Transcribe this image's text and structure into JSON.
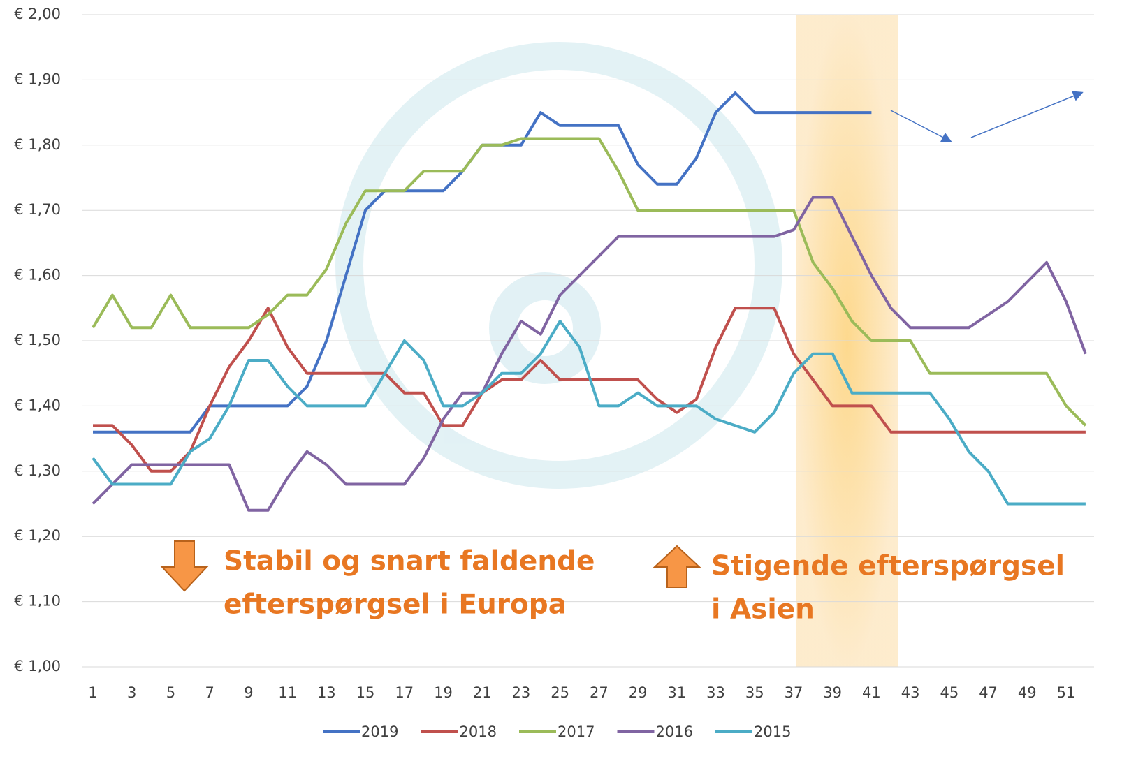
{
  "chart_data": {
    "type": "line",
    "categories": [
      1,
      null,
      3,
      null,
      5,
      null,
      7,
      null,
      9,
      null,
      11,
      null,
      13,
      null,
      15,
      null,
      17,
      null,
      19,
      null,
      21,
      null,
      23,
      null,
      25,
      null,
      27,
      null,
      29,
      null,
      31,
      null,
      33,
      null,
      35,
      null,
      37,
      null,
      39,
      null,
      41,
      null,
      43,
      null,
      45,
      null,
      47,
      null,
      49,
      null,
      51,
      null
    ],
    "ylim": [
      1.0,
      2.0
    ],
    "yticks": [
      {
        "value": 1.0,
        "label": "€ 1,00"
      },
      {
        "value": 1.1,
        "label": "€ 1,10"
      },
      {
        "value": 1.2,
        "label": "€ 1,20"
      },
      {
        "value": 1.3,
        "label": "€ 1,30"
      },
      {
        "value": 1.4,
        "label": "€ 1,40"
      },
      {
        "value": 1.5,
        "label": "€ 1,50"
      },
      {
        "value": 1.6,
        "label": "€ 1,60"
      },
      {
        "value": 1.7,
        "label": "€ 1,70"
      },
      {
        "value": 1.8,
        "label": "€ 1,80"
      },
      {
        "value": 1.9,
        "label": "€ 1,90"
      },
      {
        "value": 2.0,
        "label": "€ 2,00"
      }
    ],
    "grid": true,
    "legend": "bottom",
    "series": [
      {
        "name": "2019",
        "color": "#4472c4",
        "values": [
          1.36,
          1.36,
          1.36,
          1.36,
          1.36,
          1.36,
          1.4,
          1.4,
          1.4,
          1.4,
          1.4,
          1.43,
          1.5,
          1.6,
          1.7,
          1.73,
          1.73,
          1.73,
          1.73,
          1.76,
          1.8,
          1.8,
          1.8,
          1.85,
          1.83,
          1.83,
          1.83,
          1.83,
          1.77,
          1.74,
          1.74,
          1.78,
          1.85,
          1.88,
          1.85,
          1.85,
          1.85,
          1.85,
          1.85,
          1.85,
          1.85,
          null,
          null,
          null,
          null,
          null,
          null,
          null,
          null,
          null,
          null,
          null
        ]
      },
      {
        "name": "2018",
        "color": "#c0504d",
        "values": [
          1.37,
          1.37,
          1.34,
          1.3,
          1.3,
          1.33,
          1.4,
          1.46,
          1.5,
          1.55,
          1.49,
          1.45,
          1.45,
          1.45,
          1.45,
          1.45,
          1.42,
          1.42,
          1.37,
          1.37,
          1.42,
          1.44,
          1.44,
          1.47,
          1.44,
          1.44,
          1.44,
          1.44,
          1.44,
          1.41,
          1.39,
          1.41,
          1.49,
          1.55,
          1.55,
          1.55,
          1.48,
          1.44,
          1.4,
          1.4,
          1.4,
          1.36,
          1.36,
          1.36,
          1.36,
          1.36,
          1.36,
          1.36,
          1.36,
          1.36,
          1.36,
          1.36
        ]
      },
      {
        "name": "2017",
        "color": "#9bbb59",
        "values": [
          1.52,
          1.57,
          1.52,
          1.52,
          1.57,
          1.52,
          1.52,
          1.52,
          1.52,
          1.54,
          1.57,
          1.57,
          1.61,
          1.68,
          1.73,
          1.73,
          1.73,
          1.76,
          1.76,
          1.76,
          1.8,
          1.8,
          1.81,
          1.81,
          1.81,
          1.81,
          1.81,
          1.76,
          1.7,
          1.7,
          1.7,
          1.7,
          1.7,
          1.7,
          1.7,
          1.7,
          1.7,
          1.62,
          1.58,
          1.53,
          1.5,
          1.5,
          1.5,
          1.45,
          1.45,
          1.45,
          1.45,
          1.45,
          1.45,
          1.45,
          1.4,
          1.37
        ]
      },
      {
        "name": "2016",
        "color": "#8064a2",
        "values": [
          1.25,
          1.28,
          1.31,
          1.31,
          1.31,
          1.31,
          1.31,
          1.31,
          1.24,
          1.24,
          1.29,
          1.33,
          1.31,
          1.28,
          1.28,
          1.28,
          1.28,
          1.32,
          1.38,
          1.42,
          1.42,
          1.48,
          1.53,
          1.51,
          1.57,
          1.6,
          1.63,
          1.66,
          1.66,
          1.66,
          1.66,
          1.66,
          1.66,
          1.66,
          1.66,
          1.66,
          1.67,
          1.72,
          1.72,
          1.66,
          1.6,
          1.55,
          1.52,
          1.52,
          1.52,
          1.52,
          1.54,
          1.56,
          1.59,
          1.62,
          1.56,
          1.48
        ]
      },
      {
        "name": "2015",
        "color": "#4bacc6",
        "values": [
          1.32,
          1.28,
          1.28,
          1.28,
          1.28,
          1.33,
          1.35,
          1.4,
          1.47,
          1.47,
          1.43,
          1.4,
          1.4,
          1.4,
          1.4,
          1.45,
          1.5,
          1.47,
          1.4,
          1.4,
          1.42,
          1.45,
          1.45,
          1.48,
          1.53,
          1.49,
          1.4,
          1.4,
          1.42,
          1.4,
          1.4,
          1.4,
          1.38,
          1.37,
          1.36,
          1.39,
          1.45,
          1.48,
          1.48,
          1.42,
          1.42,
          1.42,
          1.42,
          1.42,
          1.38,
          1.33,
          1.3,
          1.25,
          1.25,
          1.25,
          1.25,
          1.25
        ]
      }
    ],
    "annotations": [
      {
        "lines": [
          "Stabil og snart faldende",
          "efterspørgsel i Europa"
        ]
      },
      {
        "lines": [
          "Stigende efterspørgsel",
          "i Asien"
        ]
      }
    ]
  }
}
